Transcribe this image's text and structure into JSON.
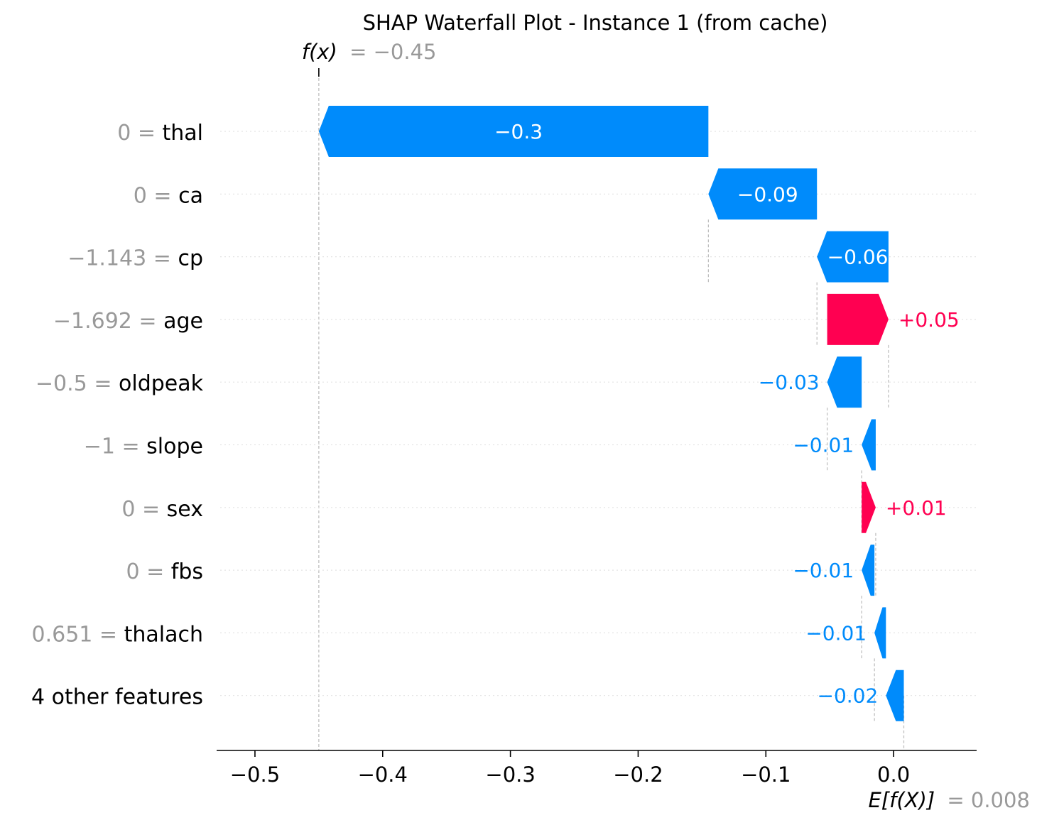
{
  "chart_data": {
    "type": "waterfall",
    "title": "SHAP Waterfall Plot - Instance 1 (from cache)",
    "fx": {
      "label": "f(x)",
      "value_text": "= −0.45",
      "value": -0.45
    },
    "efx": {
      "label": "E[f(X)]",
      "value_text": "= 0.008",
      "value": 0.008
    },
    "xlim": [
      -0.53,
      0.065
    ],
    "ticks": [
      {
        "v": -0.5,
        "label": "−0.5"
      },
      {
        "v": -0.4,
        "label": "−0.4"
      },
      {
        "v": -0.3,
        "label": "−0.3"
      },
      {
        "v": -0.2,
        "label": "−0.2"
      },
      {
        "v": -0.1,
        "label": "−0.1"
      },
      {
        "v": 0.0,
        "label": "0.0"
      }
    ],
    "rows": [
      {
        "name": "thal",
        "value": "0",
        "start": -0.145,
        "end": -0.45,
        "label": "−0.3",
        "sign": "neg",
        "label_inside": true
      },
      {
        "name": "ca",
        "value": "0",
        "start": -0.06,
        "end": -0.145,
        "label": "−0.09",
        "sign": "neg",
        "label_inside": true
      },
      {
        "name": "cp",
        "value": "−1.143",
        "start": -0.004,
        "end": -0.06,
        "label": "−0.06",
        "sign": "neg",
        "label_inside": true
      },
      {
        "name": "age",
        "value": "−1.692",
        "start": -0.052,
        "end": -0.004,
        "label": "+0.05",
        "sign": "pos",
        "label_inside": false
      },
      {
        "name": "oldpeak",
        "value": "−0.5",
        "start": -0.025,
        "end": -0.052,
        "label": "−0.03",
        "sign": "neg",
        "label_inside": false
      },
      {
        "name": "slope",
        "value": "−1",
        "start": -0.014,
        "end": -0.025,
        "label": "−0.01",
        "sign": "neg",
        "label_inside": false
      },
      {
        "name": "sex",
        "value": "0",
        "start": -0.025,
        "end": -0.014,
        "label": "+0.01",
        "sign": "pos",
        "label_inside": false
      },
      {
        "name": "fbs",
        "value": "0",
        "start": -0.015,
        "end": -0.025,
        "label": "−0.01",
        "sign": "neg",
        "label_inside": false
      },
      {
        "name": "thalach",
        "value": "0.651",
        "start": -0.006,
        "end": -0.015,
        "label": "−0.01",
        "sign": "neg",
        "label_inside": false
      },
      {
        "name": "4 other features",
        "value": "",
        "start": 0.008,
        "end": -0.006,
        "label": "−0.02",
        "sign": "neg",
        "label_inside": false
      }
    ],
    "colors": {
      "negative": "#008bfb",
      "positive": "#ff0051",
      "label_inside": "#ffffff"
    }
  }
}
